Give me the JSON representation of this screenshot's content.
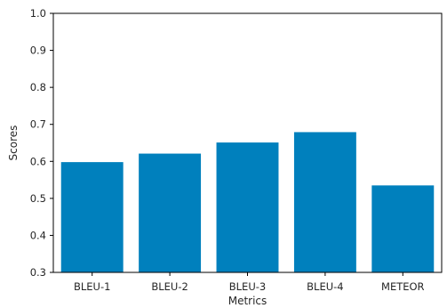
{
  "chart_data": {
    "type": "bar",
    "title": "",
    "xlabel": "Metrics",
    "ylabel": "Scores",
    "categories": [
      "BLEU-1",
      "BLEU-2",
      "BLEU-3",
      "BLEU-4",
      "METEOR"
    ],
    "values": [
      0.598,
      0.621,
      0.651,
      0.679,
      0.535
    ],
    "ylim": [
      0.3,
      1.0
    ],
    "yticks": [
      "0.3",
      "0.4",
      "0.5",
      "0.6",
      "0.7",
      "0.8",
      "0.9",
      "1.0"
    ],
    "bar_color": "#0080bd",
    "grid": false,
    "legend": false
  }
}
